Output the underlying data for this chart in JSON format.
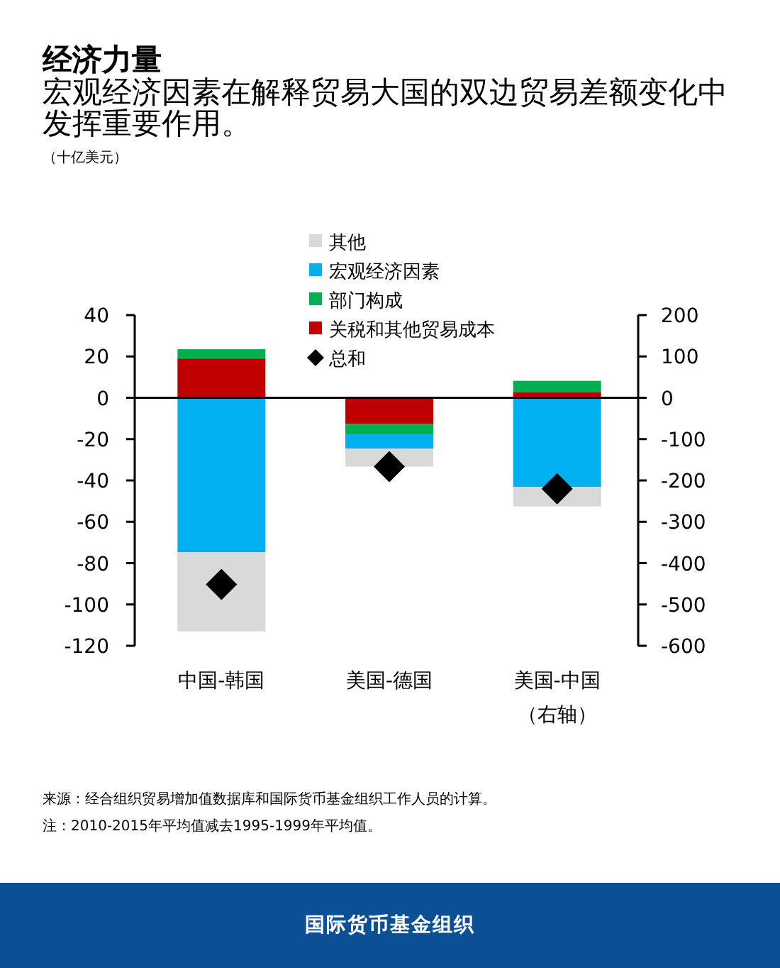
{
  "chart_data": {
    "type": "bar",
    "stacked": true,
    "title": "经济力量",
    "subtitle": "宏观经济因素在解释贸易大国的双边贸易差额变化中发挥重要作用。",
    "categories": [
      "中国-韩国",
      "美国-德国",
      "美国-中国（右轴）"
    ],
    "ylim": [
      -120,
      40
    ],
    "yticks": [
      -120,
      -100,
      -80,
      -60,
      -40,
      -20,
      0,
      20,
      40
    ],
    "y2lim": [
      -600,
      200
    ],
    "y2ticks": [
      -600,
      -500,
      -400,
      -300,
      -200,
      -100,
      0,
      100,
      200
    ],
    "legend": "top",
    "series": [
      {
        "name": "关税和其他贸易成本",
        "color": "#c00000",
        "values": [
          19,
          -12.6,
          null
        ]
      },
      {
        "name": "部门构成",
        "color": "#00b050",
        "values": [
          4.5,
          -5.1,
          null
        ]
      },
      {
        "name": "宏观经济因素",
        "color": "#00b0f0",
        "values": [
          -74.7,
          -6.9,
          null
        ]
      },
      {
        "name": "其他",
        "color": "#d9d9d9",
        "values": [
          -38.3,
          -8.7,
          null
        ]
      },
      {
        "name": "总和",
        "type": "scatter",
        "marker": "diamond",
        "color": "#000000",
        "values": [
          -90.3,
          -33.3,
          null
        ]
      },
      {
        "color": "#c00000",
        "axis": "y2",
        "values": [
          null,
          null,
          14
        ]
      },
      {
        "color": "#00b050",
        "axis": "y2",
        "values": [
          null,
          null,
          27
        ]
      },
      {
        "color": "#00b0f0",
        "axis": "y2",
        "values": [
          null,
          null,
          -216
        ]
      },
      {
        "color": "#d9d9d9",
        "axis": "y2",
        "values": [
          null,
          null,
          -47
        ]
      },
      {
        "type": "scatter",
        "marker": "diamond",
        "color": "#000000",
        "axis": "y2",
        "values": [
          null,
          null,
          -220
        ]
      }
    ],
    "annotations": [
      "（十亿美元）",
      "来源：经合组织贸易增加值数据库和国际货币基金组织工作人员的计算。",
      "注：2010-2015年平均值减去1995-1999年平均值。",
      "国际货币基金组织"
    ]
  }
}
